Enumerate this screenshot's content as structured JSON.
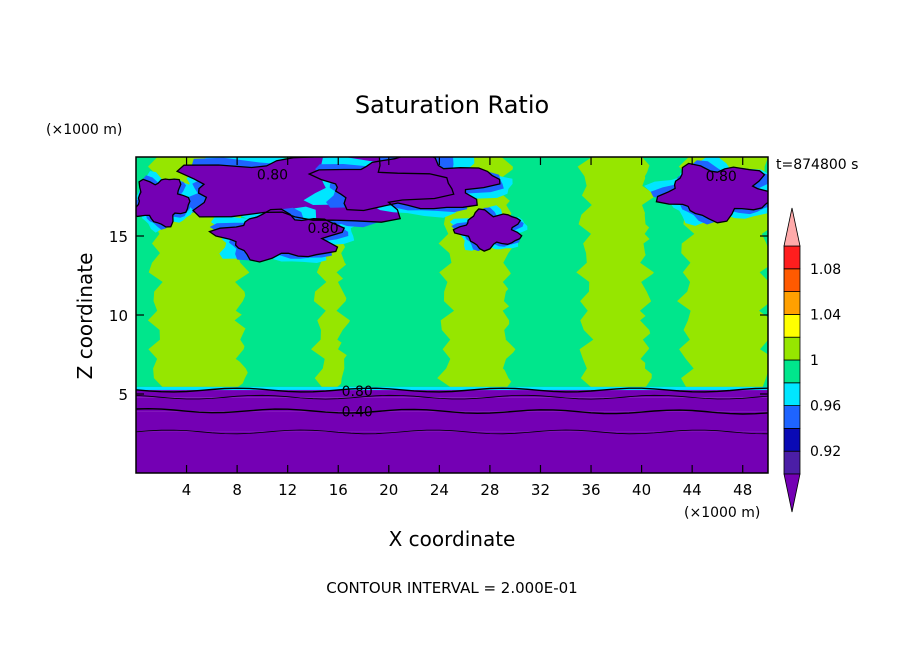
{
  "chart_data": {
    "type": "heatmap",
    "title": "Saturation Ratio",
    "xlabel": "X coordinate",
    "ylabel": "Z coordinate",
    "x_unit": "(×1000 m)",
    "y_unit": "(×1000 m)",
    "time_label": "t=874800 s",
    "footer": "CONTOUR INTERVAL = 2.000E-01",
    "xlim": [
      0,
      50
    ],
    "ylim": [
      0,
      20
    ],
    "x_ticks": [
      4,
      8,
      12,
      16,
      20,
      24,
      28,
      32,
      36,
      40,
      44,
      48
    ],
    "y_ticks": [
      5,
      10,
      15
    ],
    "colorbar": {
      "labels": [
        "1.08",
        "1.04",
        "1",
        "0.96",
        "0.92"
      ],
      "bands": [
        {
          "lo": null,
          "hi": 0.9,
          "color": "#7400b4"
        },
        {
          "lo": 0.9,
          "hi": 0.92,
          "color": "#4b1ea6"
        },
        {
          "lo": 0.92,
          "hi": 0.94,
          "color": "#0a0ab4"
        },
        {
          "lo": 0.94,
          "hi": 0.96,
          "color": "#1e64ff"
        },
        {
          "lo": 0.96,
          "hi": 0.98,
          "color": "#00e6ff"
        },
        {
          "lo": 0.98,
          "hi": 1.0,
          "color": "#00e68c"
        },
        {
          "lo": 1.0,
          "hi": 1.02,
          "color": "#96e600"
        },
        {
          "lo": 1.02,
          "hi": 1.04,
          "color": "#ffff00"
        },
        {
          "lo": 1.04,
          "hi": 1.06,
          "color": "#ffa000"
        },
        {
          "lo": 1.06,
          "hi": 1.08,
          "color": "#ff5a00"
        },
        {
          "lo": 1.08,
          "hi": 1.1,
          "color": "#ff1e1e"
        },
        {
          "lo": 1.1,
          "hi": null,
          "color": "#ffaaaa"
        }
      ]
    },
    "contour_labels": [
      {
        "text": "0.80",
        "x": 10.8,
        "y": 18.9
      },
      {
        "text": "0.80",
        "x": 14.8,
        "y": 15.5
      },
      {
        "text": "0.80",
        "x": 46.3,
        "y": 18.8
      },
      {
        "text": "0.80",
        "x": 17.5,
        "y": 5.2
      },
      {
        "text": "0.40",
        "x": 17.5,
        "y": 3.9
      }
    ],
    "regions": {
      "lower_layer": [
        {
          "x": 0,
          "z0": 0,
          "z1": 5.4
        }
      ],
      "lower_layer_top_z": 5.4,
      "mid_bands": [
        {
          "x0": 0.0,
          "x1": 1.5,
          "value": 0.99
        },
        {
          "x0": 1.5,
          "x1": 8.5,
          "value": 1.01
        },
        {
          "x0": 8.5,
          "x1": 14.5,
          "value": 0.99
        },
        {
          "x0": 14.5,
          "x1": 16.5,
          "value": 1.01
        },
        {
          "x0": 16.5,
          "x1": 24.5,
          "value": 0.99
        },
        {
          "x0": 24.5,
          "x1": 29.5,
          "value": 1.01
        },
        {
          "x0": 29.5,
          "x1": 35.5,
          "value": 0.99
        },
        {
          "x0": 35.5,
          "x1": 40.5,
          "value": 1.01
        },
        {
          "x0": 40.5,
          "x1": 43.5,
          "value": 0.99
        },
        {
          "x0": 43.5,
          "x1": 50.0,
          "value": 1.01
        }
      ],
      "upper_clouds": [
        {
          "cx": 14.0,
          "cz": 18.0,
          "rx": 10.0,
          "rz": 2.0,
          "value": 0.8
        },
        {
          "cx": 21.5,
          "cz": 18.3,
          "rx": 6.5,
          "rz": 1.6,
          "value": 0.8
        },
        {
          "cx": 11.5,
          "cz": 15.0,
          "rx": 4.5,
          "rz": 1.4,
          "value": 0.8
        },
        {
          "cx": 28.0,
          "cz": 15.4,
          "rx": 2.3,
          "rz": 1.1,
          "value": 0.8
        },
        {
          "cx": 46.0,
          "cz": 17.8,
          "rx": 4.0,
          "rz": 1.6,
          "value": 0.8
        },
        {
          "cx": 2.0,
          "cz": 17.2,
          "rx": 2.0,
          "rz": 1.4,
          "value": 0.8
        }
      ]
    }
  }
}
